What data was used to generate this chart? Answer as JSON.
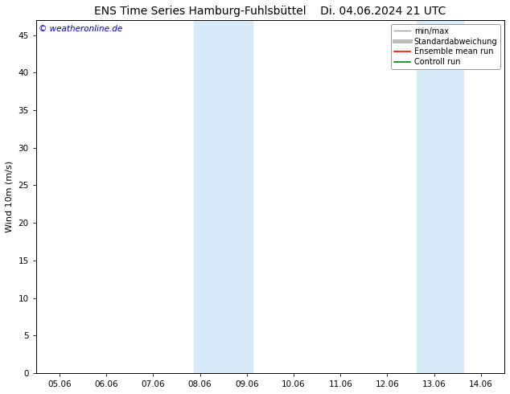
{
  "title_left": "ENS Time Series Hamburg-Fuhlsbüttel",
  "title_right": "Di. 04.06.2024 21 UTC",
  "ylabel": "Wind 10m (m/s)",
  "watermark": "© weatheronline.de",
  "watermark_color": "#0000cc",
  "ylim": [
    0,
    47
  ],
  "yticks": [
    0,
    5,
    10,
    15,
    20,
    25,
    30,
    35,
    40,
    45
  ],
  "xtick_labels": [
    "05.06",
    "06.06",
    "07.06",
    "08.06",
    "09.06",
    "10.06",
    "11.06",
    "12.06",
    "13.06",
    "14.06"
  ],
  "xtick_positions": [
    0,
    1,
    2,
    3,
    4,
    5,
    6,
    7,
    8,
    9
  ],
  "xlim": [
    -0.5,
    9.5
  ],
  "shaded_regions": [
    {
      "x_start": 2.875,
      "x_end": 3.375,
      "color": "#d6eaf8"
    },
    {
      "x_start": 3.375,
      "x_end": 4.125,
      "color": "#d6eaf8"
    },
    {
      "x_start": 7.625,
      "x_end": 8.125,
      "color": "#d6eaf8"
    },
    {
      "x_start": 8.125,
      "x_end": 8.625,
      "color": "#d6eaf8"
    }
  ],
  "legend_entries": [
    {
      "label": "min/max",
      "color": "#999999",
      "lw": 1.0
    },
    {
      "label": "Standardabweichung",
      "color": "#bbbbbb",
      "lw": 3.5
    },
    {
      "label": "Ensemble mean run",
      "color": "#ff0000",
      "lw": 1.2
    },
    {
      "label": "Controll run",
      "color": "#008000",
      "lw": 1.2
    }
  ],
  "bg_color": "#ffffff",
  "plot_bg_color": "#ffffff",
  "border_color": "#000000",
  "title_fontsize": 10,
  "label_fontsize": 8,
  "tick_fontsize": 7.5,
  "watermark_fontsize": 7.5,
  "legend_fontsize": 7
}
